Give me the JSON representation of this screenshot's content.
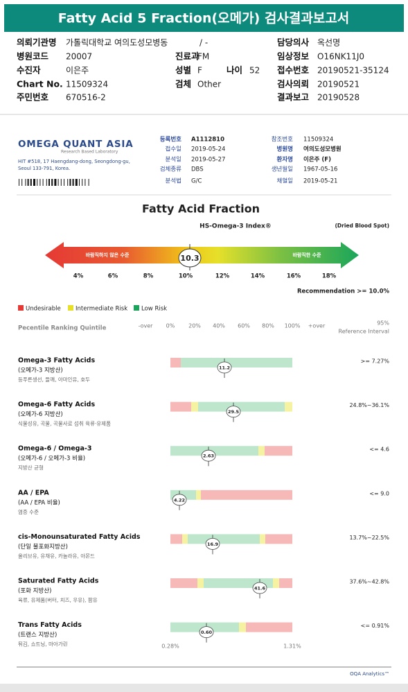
{
  "header": {
    "title": "Fatty Acid 5 Fraction(오메가) 검사결과보고서"
  },
  "patient_info": [
    {
      "label": "의뢰기관명",
      "value": "가톨릭대학교 여의도성모병동"
    },
    {
      "value": "/ -"
    },
    {
      "label": "담당의사",
      "value": "옥선명"
    },
    {
      "label": "병원코드",
      "value": "20007"
    },
    {
      "label": "진료과",
      "value": "FM"
    },
    {
      "label": "임상정보",
      "value": "O16NK11J0"
    },
    {
      "label": "수진자",
      "value": "이은주"
    },
    {
      "label": "성별",
      "value": "F"
    },
    {
      "label": "나이",
      "value": "52"
    },
    {
      "label": "접수번호",
      "value": "20190521-35124"
    },
    {
      "label": "Chart No.",
      "value": "11509324"
    },
    {
      "label": "검체",
      "value": "Other"
    },
    {
      "label": "검사의뢰",
      "value": "20190521"
    },
    {
      "label": "주민번호",
      "value": "670516-2"
    },
    {
      "label": "결과보고",
      "value": "20190528"
    }
  ],
  "lab": {
    "logo": "OMEGA QUANT ASIA",
    "tagline": "Research Based Laboratory",
    "address_line1": "HIT #518, 17 Haengdang-dong, Seongdong-gu,",
    "address_line2": "Seoul 133-791, Korea.",
    "fields": [
      {
        "label": "등록번호",
        "value": "A1112810"
      },
      {
        "label": "접수일",
        "value": "2019-05-24"
      },
      {
        "label": "분석일",
        "value": "2019-05-27"
      },
      {
        "label": "검체종류",
        "value": "DBS"
      },
      {
        "label": "분석법",
        "value": "G/C"
      },
      {
        "label": "참조번호",
        "value": "11509324"
      },
      {
        "label": "병원명",
        "value": "여의도성모병원"
      },
      {
        "label": "환자명",
        "value": "이은주 (F)"
      },
      {
        "label": "생년월일",
        "value": "1967-05-16"
      },
      {
        "label": "채혈일",
        "value": "2019-05-21"
      }
    ]
  },
  "section_title": "Fatty Acid Fraction",
  "gauge": {
    "title": "HS-Omega-3 Index®",
    "note": "(Dried Blood Spot)",
    "left_label": "바람직하지 않은 수준",
    "right_label": "바람직한 수준",
    "value": "10.3",
    "ticks": [
      "4%",
      "6%",
      "8%",
      "10%",
      "12%",
      "14%",
      "16%",
      "18%"
    ],
    "recommendation": "Recommendation  >= 10.0%"
  },
  "legend": [
    "Undesirable",
    "Intermediate Risk",
    "Low Risk"
  ],
  "ranking": {
    "title": "Pecentile Ranking Quintile",
    "scale": [
      "-over",
      "0%",
      "20%",
      "40%",
      "60%",
      "80%",
      "100%",
      "+over"
    ],
    "ref_header1": "95%",
    "ref_header2": "Reference Interval"
  },
  "items": [
    {
      "name": "Omega-3 Fatty Acids",
      "sub": "(오메가-3 지방산)",
      "foods": "등푸른생선, 들깨, 아마인유, 호두",
      "value": "11.2",
      "reference": ">= 7.27%"
    },
    {
      "name": "Omega-6 Fatty Acids",
      "sub": "(오메가-6 지방산)",
      "foods": "식물성유, 곡물, 곡물사료 섭취 육류·유제품",
      "value": "29.5",
      "reference": "24.8%~36.1%"
    },
    {
      "name": "Omega-6 / Omega-3",
      "sub": "(오메가-6 / 오메가-3 비율)",
      "foods": "지방산 균형",
      "value": "2.63",
      "reference": "<= 4.6"
    },
    {
      "name": "AA / EPA",
      "sub": "(AA / EPA 비율)",
      "foods": "염증 수준",
      "value": "4.22",
      "reference": "<= 9.0"
    },
    {
      "name": "cis-Monounsaturated Fatty Acids",
      "sub": "(단일 불포화지방산)",
      "foods": "올리브유, 유채유, 카놀라유, 아몬드",
      "value": "16.9",
      "reference": "13.7%~22.5%"
    },
    {
      "name": "Saturated Fatty Acids",
      "sub": "(포화 지방산)",
      "foods": "육류, 유제품(버터, 치즈, 우유), 팜유",
      "value": "41.6",
      "reference": "37.6%~42.8%"
    },
    {
      "name": "Trans Fatty Acids",
      "sub": "(트랜스 지방산)",
      "foods": "튀김, 쇼트닝, 마아가린",
      "value": "0.60",
      "reference": "<= 0.91%"
    }
  ],
  "trans_range": {
    "low": "0.28%",
    "high": "1.31%"
  },
  "footer": "OQA Analytics™"
}
